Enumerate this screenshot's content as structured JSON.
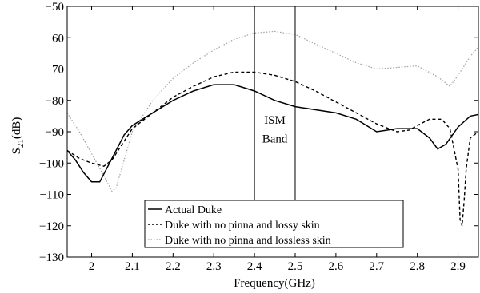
{
  "chart_data": {
    "type": "line",
    "title": "",
    "xlabel": "Frequency(GHz)",
    "ylabel_main": "S",
    "ylabel_sub": "21",
    "ylabel_unit": "(dB)",
    "xlim": [
      1.94,
      2.95
    ],
    "ylim": [
      -130,
      -50
    ],
    "xticks": [
      2.0,
      2.1,
      2.2,
      2.3,
      2.4,
      2.5,
      2.6,
      2.7,
      2.8,
      2.9
    ],
    "xtick_labels": [
      "2",
      "2.1",
      "2.2",
      "2.3",
      "2.4",
      "2.5",
      "2.6",
      "2.7",
      "2.8",
      "2.9"
    ],
    "yticks": [
      -130,
      -120,
      -110,
      -100,
      -90,
      -80,
      -70,
      -60,
      -50
    ],
    "ytick_labels": [
      "−130",
      "−120",
      "−110",
      "−100",
      "−90",
      "−80",
      "−70",
      "−60",
      "−50"
    ],
    "grid": false,
    "legend_position": "bottom-center",
    "annotation": {
      "lines": [
        "ISM",
        "Band"
      ],
      "x_range": [
        2.4,
        2.5
      ]
    },
    "series": [
      {
        "name": "Actual Duke",
        "style": "solid",
        "color": "#000000",
        "x": [
          1.94,
          1.96,
          1.98,
          2.0,
          2.02,
          2.04,
          2.06,
          2.08,
          2.1,
          2.15,
          2.2,
          2.25,
          2.3,
          2.35,
          2.4,
          2.45,
          2.5,
          2.55,
          2.6,
          2.65,
          2.7,
          2.75,
          2.8,
          2.83,
          2.85,
          2.87,
          2.9,
          2.93,
          2.95
        ],
        "y": [
          -96,
          -99,
          -103,
          -106,
          -106,
          -101,
          -96,
          -91,
          -88,
          -84,
          -80,
          -77,
          -75,
          -75,
          -77,
          -80,
          -82,
          -83,
          -84,
          -86,
          -90,
          -89,
          -89,
          -92,
          -95.5,
          -94,
          -88.5,
          -85,
          -84.5
        ]
      },
      {
        "name": "Duke with no pinna and lossy skin",
        "style": "dashed",
        "color": "#000000",
        "x": [
          1.94,
          1.97,
          2.0,
          2.03,
          2.05,
          2.08,
          2.1,
          2.15,
          2.2,
          2.25,
          2.3,
          2.35,
          2.4,
          2.45,
          2.5,
          2.55,
          2.6,
          2.65,
          2.7,
          2.75,
          2.78,
          2.8,
          2.83,
          2.86,
          2.88,
          2.9,
          2.905,
          2.91,
          2.915,
          2.92,
          2.93,
          2.95
        ],
        "y": [
          -96,
          -98.5,
          -100,
          -101,
          -99,
          -93,
          -89,
          -84,
          -79,
          -75.5,
          -72.5,
          -71,
          -71,
          -72,
          -74,
          -77,
          -80.5,
          -84,
          -87.5,
          -90,
          -89.5,
          -88,
          -86,
          -86,
          -89,
          -102,
          -118,
          -120,
          -112,
          -102,
          -92,
          -90
        ]
      },
      {
        "name": "Duke with no pinna and lossless skin",
        "style": "dotted",
        "color": "#a0a0a0",
        "x": [
          1.94,
          1.97,
          2.0,
          2.03,
          2.05,
          2.06,
          2.08,
          2.1,
          2.15,
          2.2,
          2.25,
          2.3,
          2.35,
          2.4,
          2.45,
          2.5,
          2.55,
          2.6,
          2.65,
          2.7,
          2.75,
          2.8,
          2.85,
          2.88,
          2.9,
          2.93,
          2.95
        ],
        "y": [
          -84,
          -90,
          -97,
          -104,
          -109,
          -108,
          -99,
          -90,
          -80,
          -73,
          -68,
          -64,
          -60.5,
          -58.5,
          -58,
          -59,
          -62,
          -65,
          -68,
          -70,
          -69.5,
          -69,
          -72.5,
          -75.5,
          -72,
          -66,
          -63
        ]
      }
    ]
  }
}
